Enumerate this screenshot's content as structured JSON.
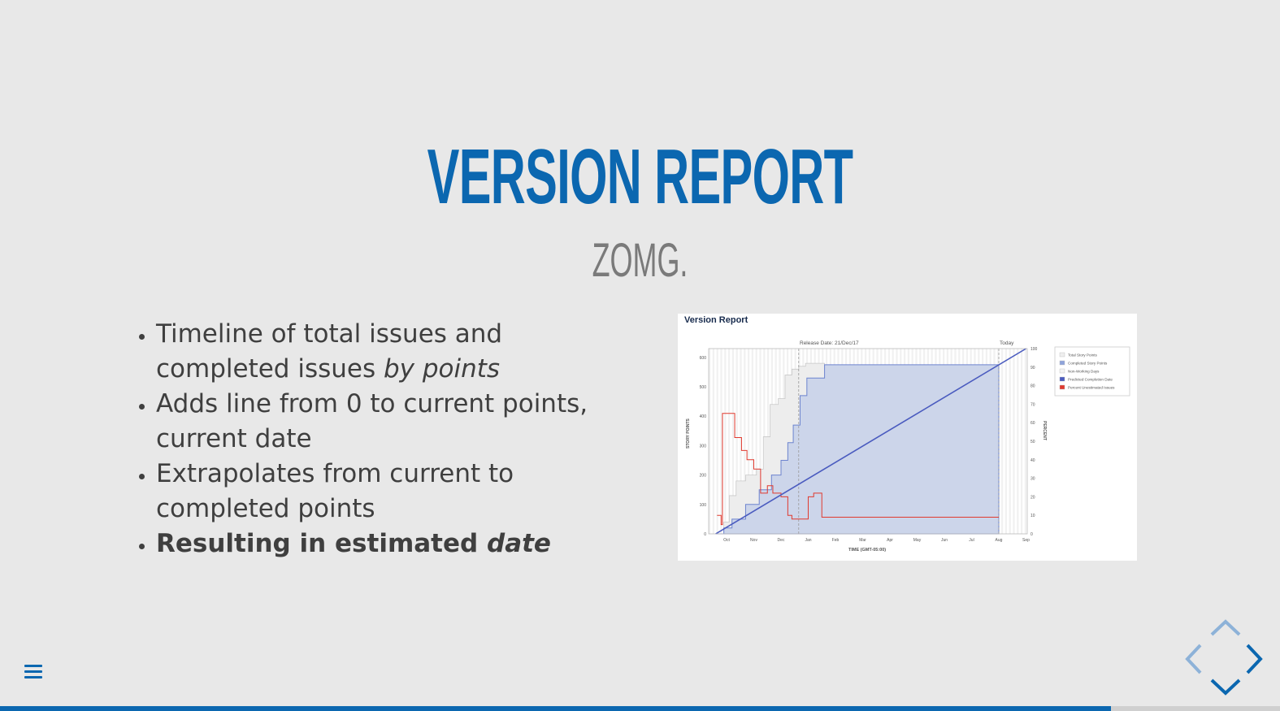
{
  "slide": {
    "title": "Version Report",
    "subtitle": "ZOMG.",
    "bullets": [
      {
        "text": "Timeline of total issues and completed issues ",
        "em": "by points"
      },
      {
        "text": "Adds line from 0 to current points, current date"
      },
      {
        "text": "Extrapolates from current to completed points"
      },
      {
        "text": "Resulting in estimated ",
        "em": "date",
        "bold": true
      }
    ]
  },
  "report": {
    "title": "Version Report",
    "release_label": "Release Date: 21/Dec/17",
    "today_label": "Today",
    "left_axis_label": "STORY POINTS",
    "right_axis_label": "PERCENT",
    "x_axis_label": "TIME (GMT-05:00)",
    "legend": [
      {
        "label": "Total Story Points",
        "color": "#eeeeee"
      },
      {
        "label": "Completed Story Points",
        "color": "#8fa3db"
      },
      {
        "label": "Non-Working Days",
        "color": "#f3f3f3"
      },
      {
        "label": "Predicted Completion Date",
        "color": "#4a5bbf"
      },
      {
        "label": "Percent Unestimated Issues",
        "color": "#e03a2f"
      }
    ]
  },
  "chart_data": {
    "type": "line",
    "x_ticks": [
      "Oct",
      "Nov",
      "Dec",
      "Jan",
      "Feb",
      "Mar",
      "Apr",
      "May",
      "Jun",
      "Jul",
      "Aug",
      "Sep"
    ],
    "y_ticks": [
      0,
      100,
      200,
      300,
      400,
      500,
      600
    ],
    "y2_ticks": [
      0,
      10,
      20,
      30,
      40,
      50,
      60,
      70,
      80,
      90,
      100
    ],
    "ylim": [
      0,
      630
    ],
    "y2lim": [
      0,
      100
    ],
    "series": [
      {
        "name": "Total Story Points",
        "x": [
          -0.1,
          0.1,
          0.35,
          0.7,
          1.1,
          1.35,
          1.6,
          1.9,
          2.15,
          2.4,
          2.65,
          2.9,
          3.6
        ],
        "values": [
          40,
          130,
          180,
          200,
          220,
          330,
          440,
          460,
          540,
          560,
          570,
          580,
          580
        ]
      },
      {
        "name": "Completed Story Points",
        "x": [
          -0.4,
          -0.1,
          0.2,
          0.7,
          1.2,
          1.65,
          2.0,
          2.25,
          2.45,
          2.7,
          2.95,
          3.6,
          10.0
        ],
        "values": [
          0,
          20,
          50,
          100,
          150,
          200,
          250,
          310,
          370,
          470,
          530,
          575,
          575
        ]
      },
      {
        "name": "Predicted Completion Date",
        "x": [
          -0.4,
          11.0
        ],
        "values": [
          0,
          630
        ]
      },
      {
        "name": "Percent Unestimated Issues",
        "x": [
          -0.35,
          -0.2,
          -0.15,
          0.3,
          0.55,
          0.75,
          1.0,
          1.25,
          1.5,
          1.7,
          2.0,
          2.25,
          2.4,
          2.7,
          3.0,
          3.2,
          3.5,
          10.0
        ],
        "values": [
          10,
          5,
          65,
          52,
          45,
          40,
          35,
          22,
          26,
          22,
          20,
          10,
          8,
          8,
          20,
          22,
          9,
          9
        ]
      }
    ]
  },
  "controls": {
    "menu_icon": "menu-icon",
    "nav_up_icon": "chevron-up-icon",
    "nav_left_icon": "chevron-left-icon",
    "nav_right_icon": "chevron-right-icon",
    "nav_down_icon": "chevron-down-icon",
    "progress": 0.868,
    "accent_color": "#0b67b0",
    "muted_color": "#8db2d8"
  }
}
